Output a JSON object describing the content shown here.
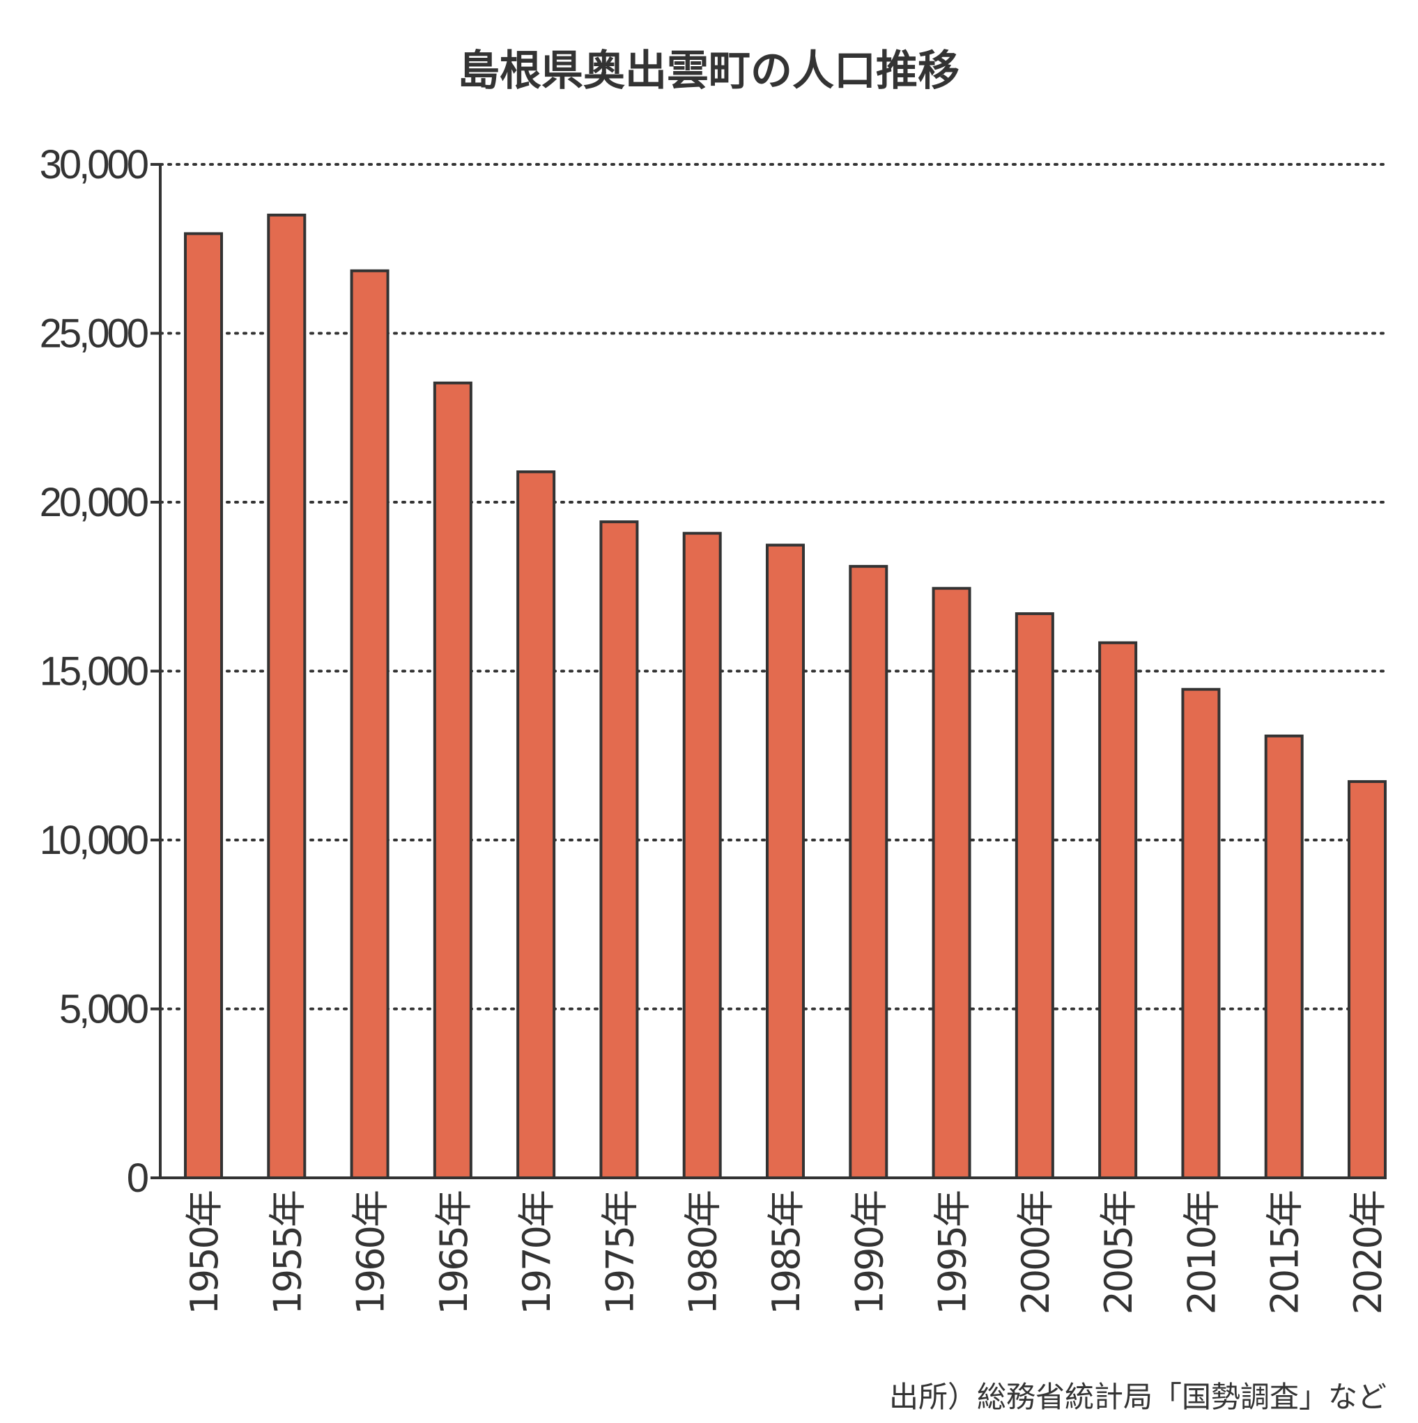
{
  "chart_data": {
    "type": "bar",
    "title": "島根県奥出雲町の人口推移",
    "xlabel": "",
    "ylabel": "",
    "categories": [
      "1950年",
      "1955年",
      "1960年",
      "1965年",
      "1970年",
      "1975年",
      "1980年",
      "1985年",
      "1990年",
      "1995年",
      "2000年",
      "2005年",
      "2010年",
      "2015年",
      "2020年"
    ],
    "values": [
      27950,
      28500,
      26850,
      23530,
      20900,
      19420,
      19080,
      18730,
      18100,
      17450,
      16700,
      15840,
      14460,
      13080,
      11730
    ],
    "ylim": [
      0,
      30000
    ],
    "yticks": [
      0,
      5000,
      10000,
      15000,
      20000,
      25000,
      30000
    ],
    "ytick_labels": [
      "0",
      "5,000",
      "10,000",
      "15,000",
      "20,000",
      "25,000",
      "30,000"
    ],
    "grid": true,
    "bar_color": "#e36b4f",
    "source": "出所）総務省統計局「国勢調査」など"
  }
}
